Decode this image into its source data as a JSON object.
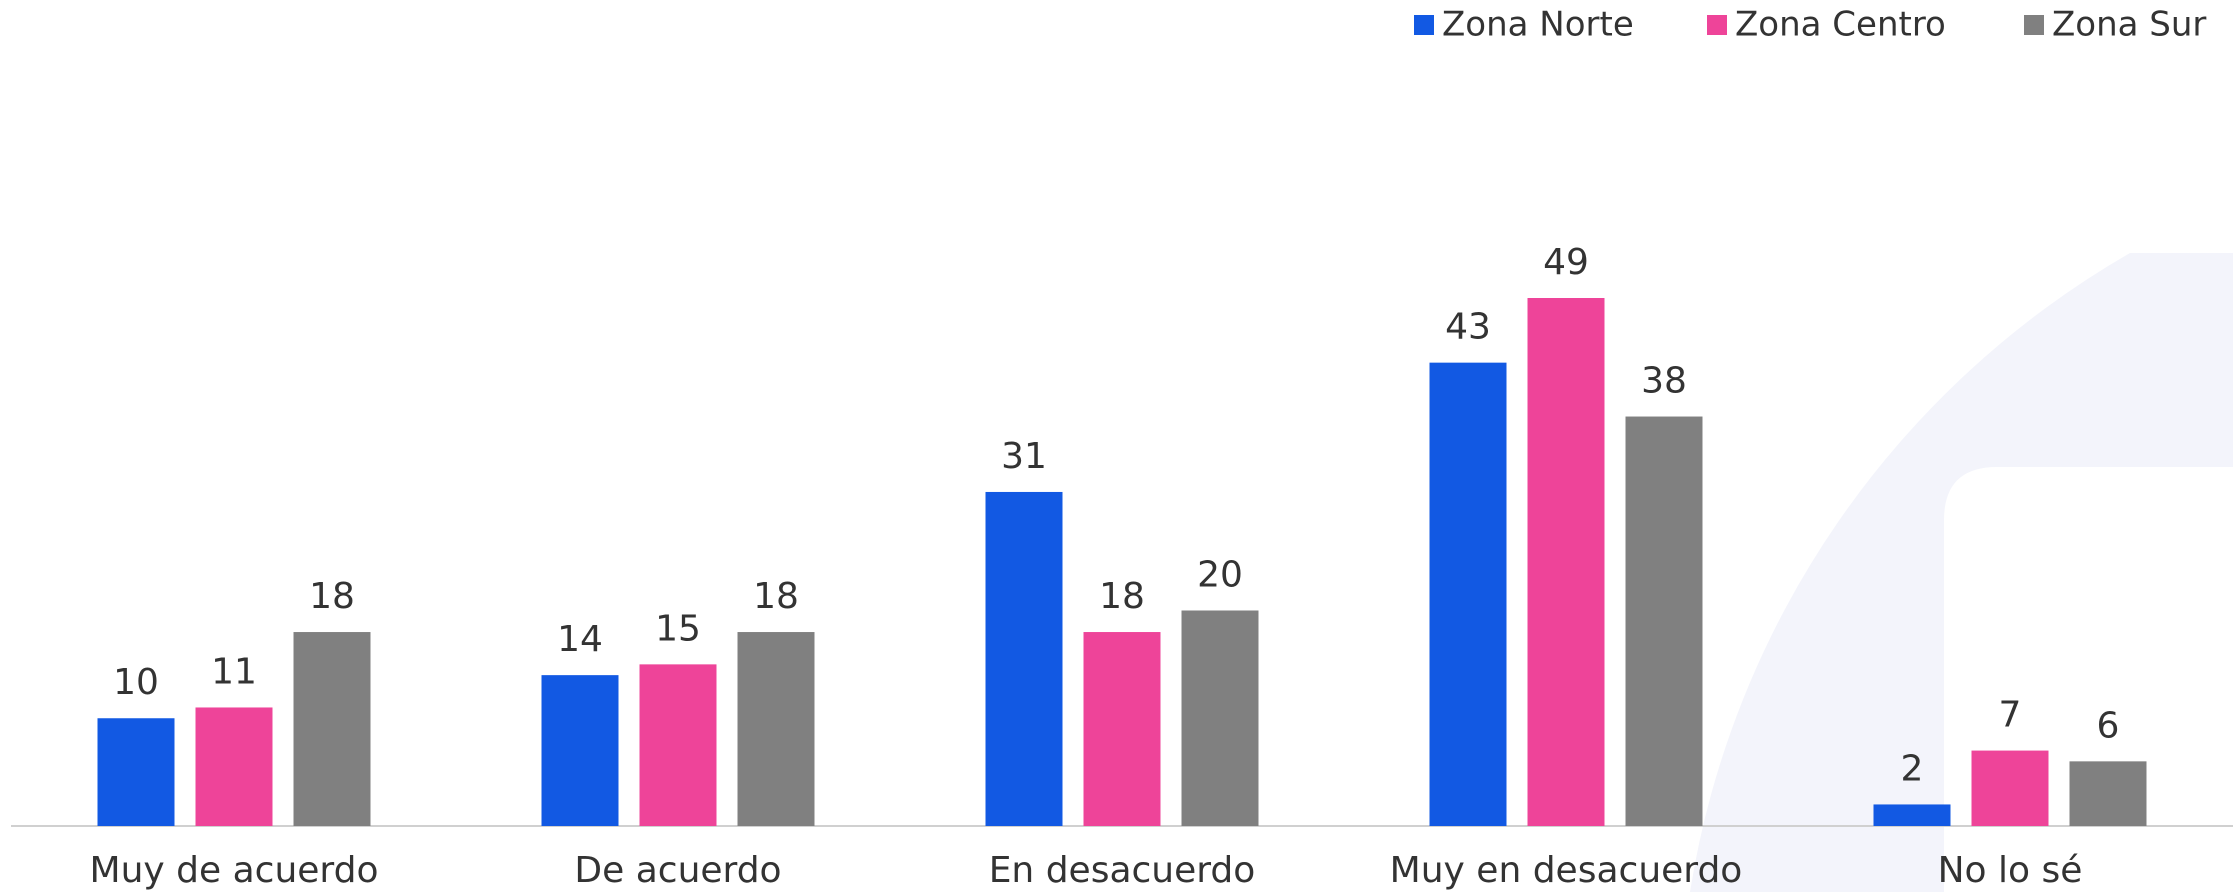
{
  "chart_data": {
    "type": "bar",
    "categories": [
      "Muy de acuerdo",
      "De acuerdo",
      "En desacuerdo",
      "Muy en desacuerdo",
      "No lo sé"
    ],
    "series": [
      {
        "name": "Zona Norte",
        "color": "#1259e3",
        "values": [
          10,
          14,
          31,
          43,
          2
        ]
      },
      {
        "name": "Zona Centro",
        "color": "#ee4499",
        "values": [
          11,
          15,
          18,
          49,
          7
        ]
      },
      {
        "name": "Zona Sur",
        "color": "#808080",
        "values": [
          18,
          18,
          20,
          38,
          6
        ]
      }
    ],
    "legend": "top-right"
  }
}
